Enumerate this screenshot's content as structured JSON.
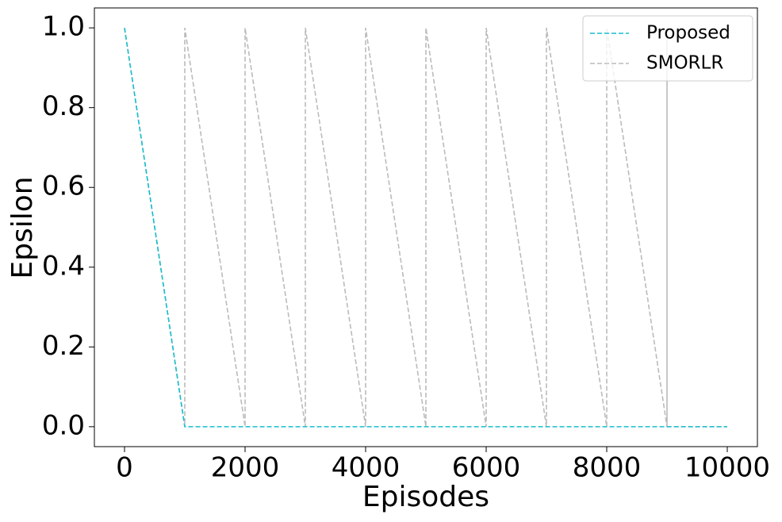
{
  "chart_data": {
    "type": "line",
    "xlabel": "Episodes",
    "ylabel": "Epsilon",
    "xlim": [
      -500,
      10500
    ],
    "ylim": [
      -0.05,
      1.05
    ],
    "xticks": [
      0,
      2000,
      4000,
      6000,
      8000,
      10000
    ],
    "yticks": [
      {
        "value": 0,
        "label": "0.0"
      },
      0.2,
      0.4,
      0.6,
      0.8,
      {
        "value": 1,
        "label": "1.0"
      }
    ],
    "legend": "upper right",
    "series": [
      {
        "name": "Proposed",
        "color": "#17becf",
        "x": [
          0,
          1000,
          10000
        ],
        "values": [
          1,
          0,
          0
        ]
      },
      {
        "name": "SMORLR",
        "color": "#bbbbbb",
        "x": [
          0,
          1000,
          1000,
          2000,
          2000,
          3000,
          3000,
          4000,
          4000,
          5000,
          5000,
          6000,
          6000,
          7000,
          7000,
          8000,
          8000,
          9000,
          9000,
          9000,
          10000
        ],
        "values": [
          1,
          0,
          1,
          0,
          1,
          0,
          1,
          0,
          1,
          0,
          1,
          0,
          1,
          0,
          1,
          0,
          1,
          0,
          1,
          0,
          0
        ]
      }
    ]
  }
}
